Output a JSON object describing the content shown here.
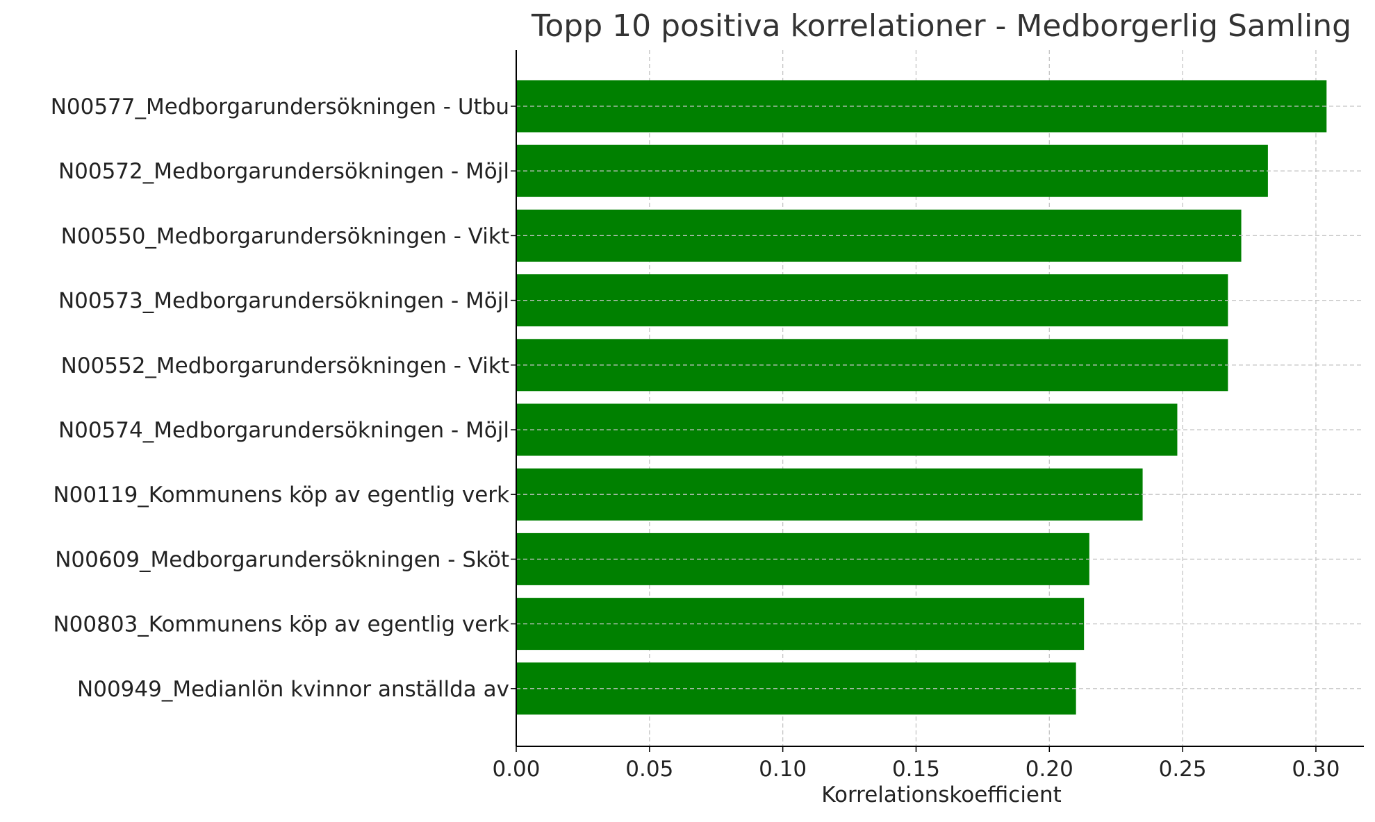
{
  "chart_data": {
    "type": "bar",
    "orientation": "horizontal",
    "title": "Topp 10 positiva korrelationer - Medborgerlig Samling",
    "xlabel": "Korrelationskoefficient",
    "ylabel": "",
    "xlim": [
      0,
      0.318
    ],
    "xticks": [
      0.0,
      0.05,
      0.1,
      0.15,
      0.2,
      0.25,
      0.3
    ],
    "xtick_labels": [
      "0.00",
      "0.05",
      "0.10",
      "0.15",
      "0.20",
      "0.25",
      "0.30"
    ],
    "grid": true,
    "grid_style": "dashed",
    "bar_color": "#008000",
    "categories": [
      "N00577_Medborgarundersökningen - Utbu",
      "N00572_Medborgarundersökningen - Möjl",
      "N00550_Medborgarundersökningen - Vikt",
      "N00573_Medborgarundersökningen - Möjl",
      "N00552_Medborgarundersökningen - Vikt",
      "N00574_Medborgarundersökningen - Möjl",
      "N00119_Kommunens köp av egentlig verk",
      "N00609_Medborgarundersökningen - Sköt",
      "N00803_Kommunens köp av egentlig verk",
      "N00949_Medianlön kvinnor anställda av"
    ],
    "values": [
      0.304,
      0.282,
      0.272,
      0.267,
      0.267,
      0.248,
      0.235,
      0.215,
      0.213,
      0.21
    ]
  }
}
